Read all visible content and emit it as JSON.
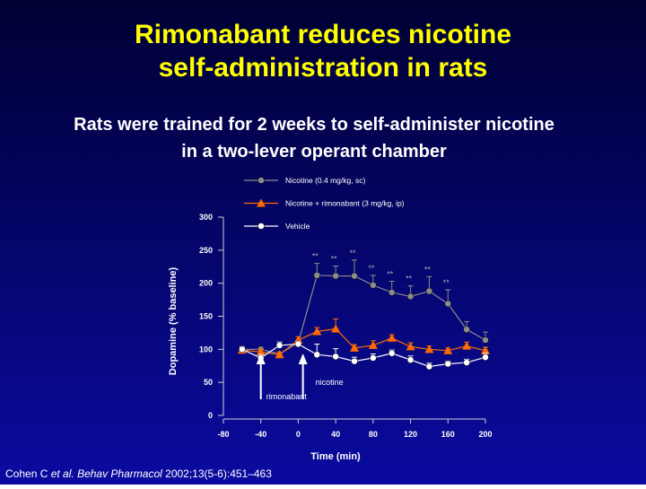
{
  "slide": {
    "title": [
      "Rimonabant reduces nicotine",
      "self-administration in rats"
    ],
    "subtitle": [
      "Rats were trained for 2 weeks to self-administer nicotine",
      "in a two-lever operant chamber"
    ],
    "citation": [
      "Cohen C",
      "et al. Behav Pharmacol",
      "2002;13(5-6):451–463"
    ]
  },
  "chart_data": {
    "type": "line",
    "x_label": "Time (min)",
    "y_label": "Dopamine (% baseline)",
    "x": [
      -60,
      -40,
      -20,
      0,
      20,
      40,
      60,
      80,
      100,
      120,
      140,
      160,
      180,
      200
    ],
    "series": [
      {
        "name": "Nicotine (0.4 mg/kg, sc)",
        "color": "#8c8c8c",
        "marker": "circle",
        "values": [
          100,
          100,
          93,
          110,
          212,
          211,
          211,
          197,
          186,
          180,
          188,
          169,
          130,
          114
        ],
        "errors": [
          3,
          3,
          3,
          4,
          18,
          15,
          24,
          15,
          17,
          16,
          22,
          21,
          12,
          12
        ]
      },
      {
        "name": "Nicotine + rimonabant (3 mg/kg, ip)",
        "color": "#ff6a00",
        "marker": "triangle",
        "values": [
          99,
          96,
          92,
          114,
          127,
          131,
          102,
          106,
          117,
          104,
          100,
          98,
          105,
          98
        ],
        "errors": [
          4,
          4,
          3,
          5,
          6,
          15,
          5,
          7,
          5,
          6,
          5,
          4,
          6,
          5
        ]
      },
      {
        "name": "Vehicle",
        "color": "#ffffff",
        "marker": "circle",
        "values": [
          100,
          87,
          106,
          108,
          92,
          89,
          82,
          87,
          94,
          84,
          74,
          78,
          80,
          88
        ],
        "errors": [
          4,
          5,
          5,
          4,
          16,
          12,
          6,
          6,
          5,
          6,
          5,
          4,
          5,
          6
        ]
      }
    ],
    "significance": [
      {
        "x": 20,
        "text": "**"
      },
      {
        "x": 40,
        "text": "**"
      },
      {
        "x": 60,
        "text": "**"
      },
      {
        "x": 80,
        "text": "**"
      },
      {
        "x": 100,
        "text": "**"
      },
      {
        "x": 120,
        "text": "**"
      },
      {
        "x": 140,
        "text": "**"
      },
      {
        "x": 160,
        "text": "**"
      }
    ],
    "events": [
      {
        "x": -40,
        "label": "rimonabant"
      },
      {
        "x": 5,
        "label": "nicotine"
      }
    ],
    "xlim": [
      -80,
      200
    ],
    "xticks": [
      -80,
      -40,
      0,
      40,
      80,
      120,
      160,
      200
    ],
    "ylim": [
      0,
      300
    ],
    "yticks": [
      0,
      50,
      100,
      150,
      200,
      250,
      300
    ],
    "grid": false,
    "legend": "top-left"
  }
}
